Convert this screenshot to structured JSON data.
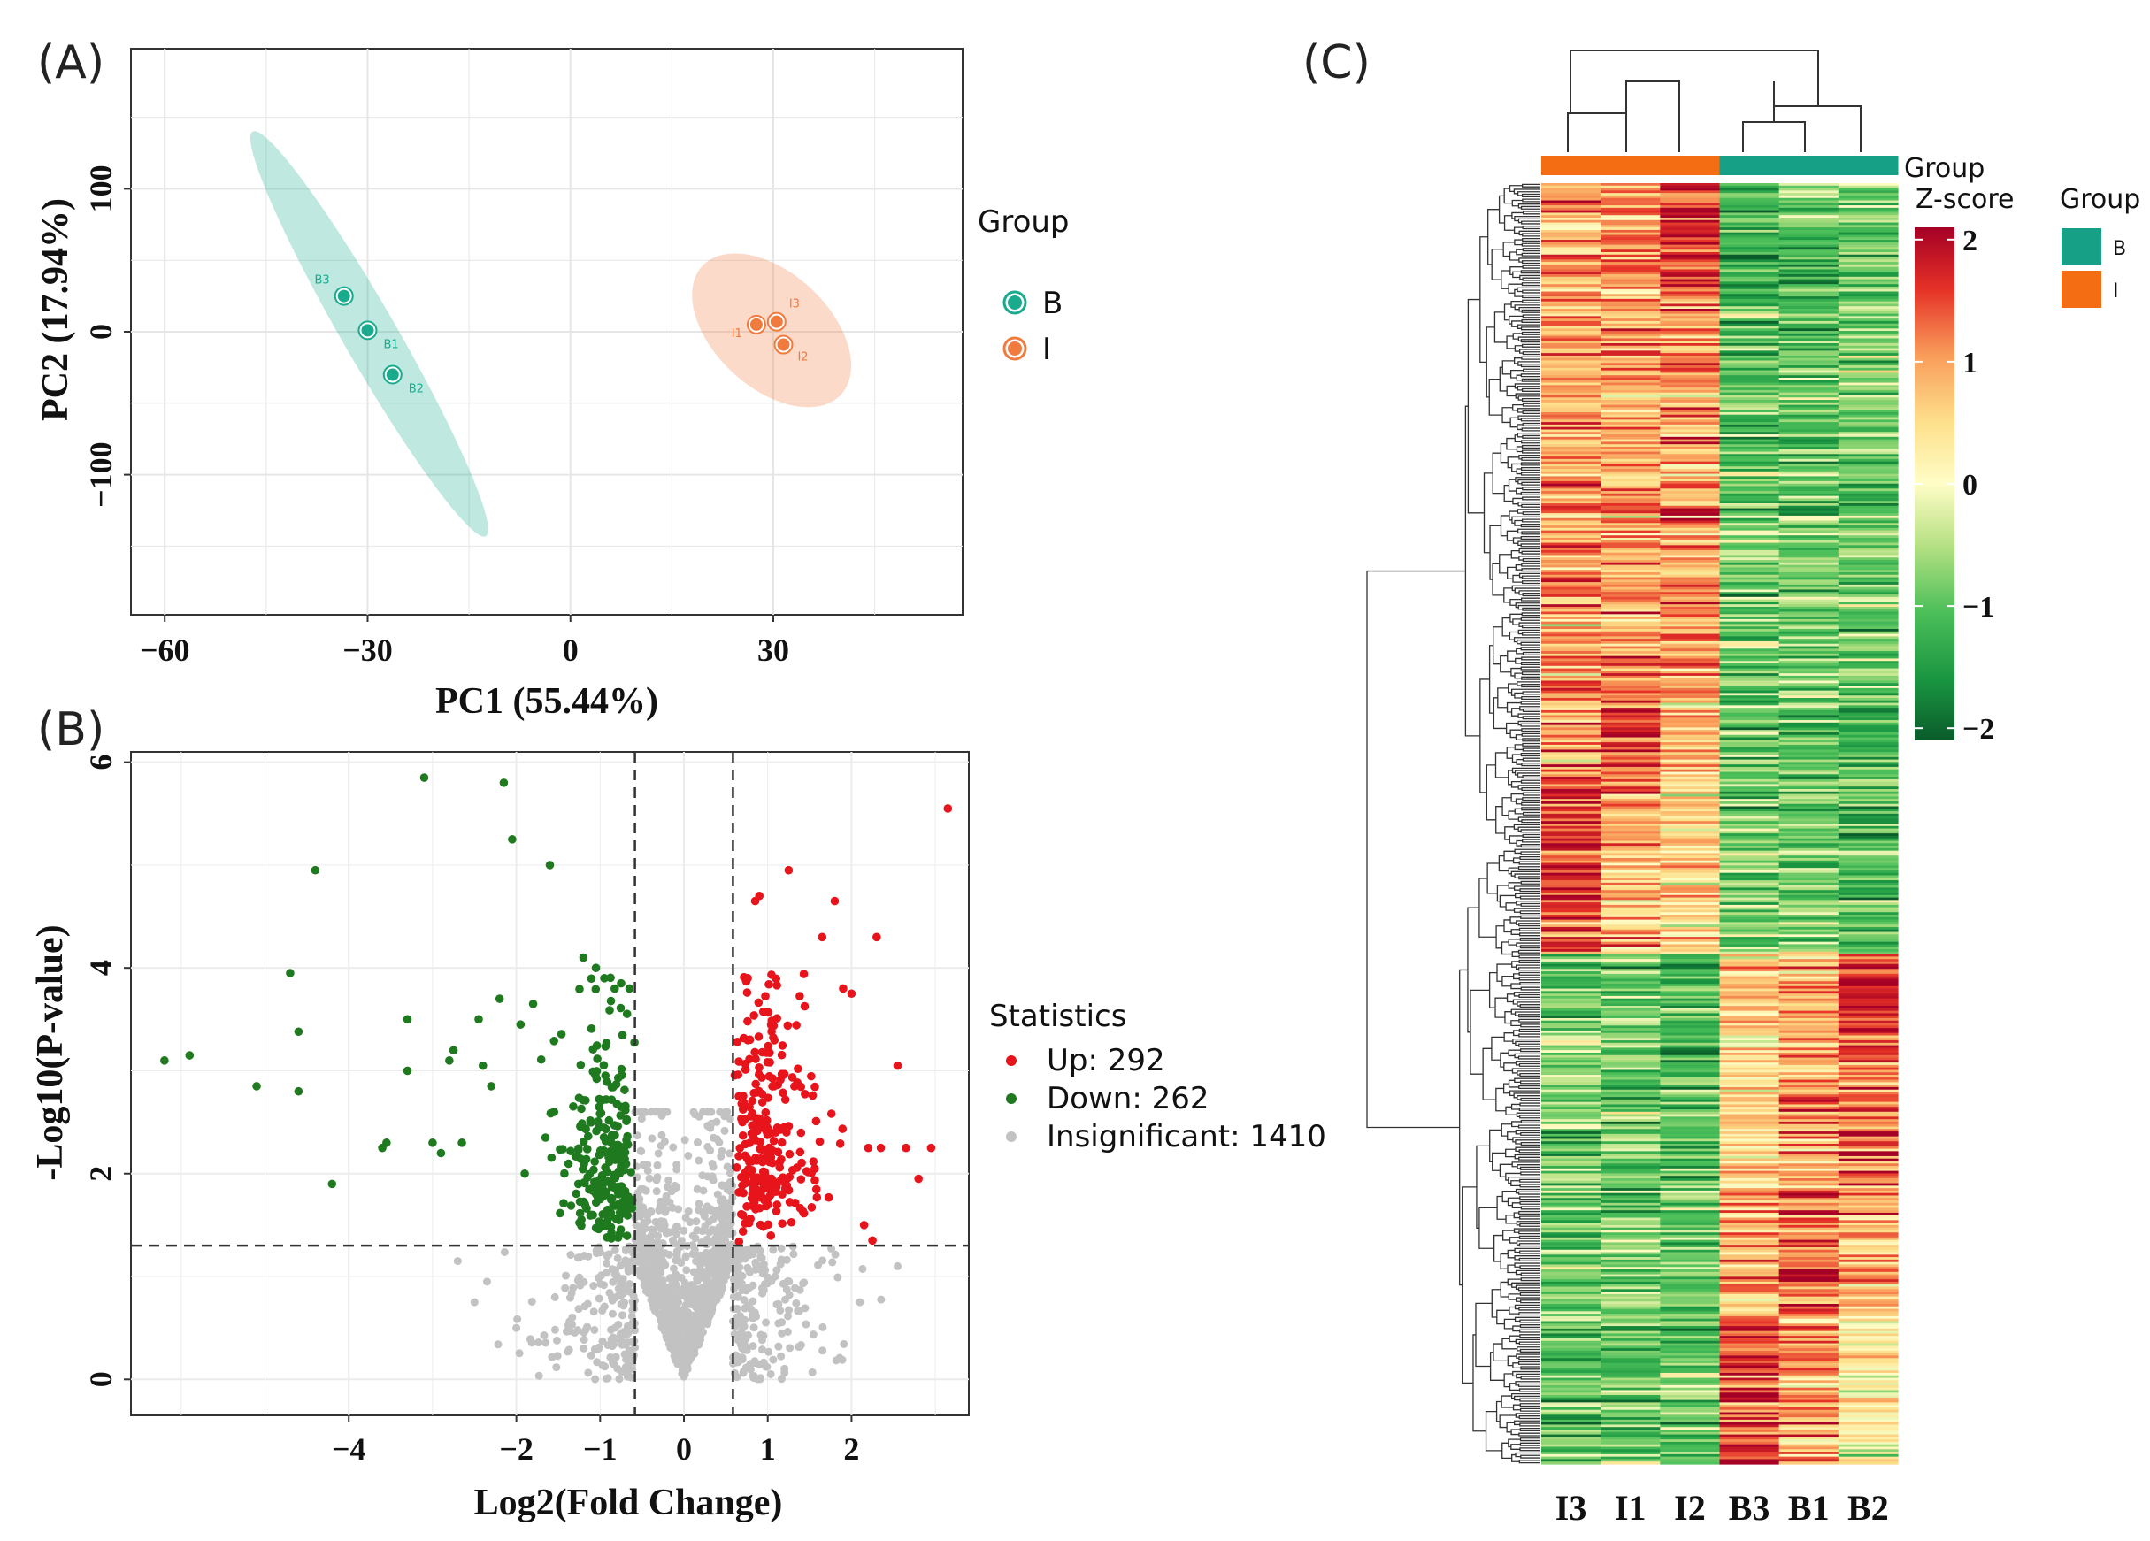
{
  "chart_data": [
    {
      "id": "A",
      "panel_label": "(A)",
      "type": "scatter",
      "title": "",
      "xlabel": "PC1 (55.44%)",
      "ylabel": "PC2 (17.94%)",
      "xlim": [
        -65,
        58
      ],
      "ylim": [
        -198,
        198
      ],
      "xticks": [
        -60,
        -30,
        0,
        30
      ],
      "yticks": [
        -100,
        0,
        100
      ],
      "xtick_labels": [
        "−60",
        "−30",
        "0",
        "30"
      ],
      "ytick_labels": [
        "−100",
        "0",
        "100"
      ],
      "grid": true,
      "legend_title": "Group",
      "series": [
        {
          "name": "B",
          "color": "#1aab8e",
          "points": [
            {
              "label": "B3",
              "x": -33.5,
              "y": 25
            },
            {
              "label": "B1",
              "x": -30.0,
              "y": 1
            },
            {
              "label": "B2",
              "x": -26.3,
              "y": -30
            }
          ],
          "ellipse": {
            "x1": -47,
            "y1": 140,
            "x2": -12.5,
            "y2": -143,
            "minor": 4
          }
        },
        {
          "name": "I",
          "color": "#f07b3f",
          "points": [
            {
              "label": "I1",
              "x": 27.5,
              "y": 5
            },
            {
              "label": "I3",
              "x": 30.5,
              "y": 7
            },
            {
              "label": "I2",
              "x": 31.5,
              "y": -9
            }
          ],
          "ellipse": {
            "x1": 19.5,
            "y1": 46,
            "x2": 40,
            "y2": -44,
            "minor": 8.5
          }
        }
      ]
    },
    {
      "id": "B",
      "panel_label": "(B)",
      "type": "scatter",
      "title": "",
      "xlabel": "Log2(Fold Change)",
      "ylabel": "-Log10(P-value)",
      "xlim": [
        -6.6,
        3.4
      ],
      "ylim": [
        -0.35,
        6.1
      ],
      "xticks": [
        -4,
        -2,
        -1,
        0,
        1,
        2
      ],
      "yticks": [
        0,
        2,
        4,
        6
      ],
      "xtick_labels": [
        "−4",
        "−2",
        "−1",
        "0",
        "1",
        "2"
      ],
      "ytick_labels": [
        "0",
        "2",
        "4",
        "6"
      ],
      "grid": true,
      "thresholds": {
        "fold_change": [
          -0.585,
          0.585
        ],
        "p_value_line": 1.3
      },
      "legend_title": "Statistics",
      "series": [
        {
          "name": "Up",
          "count": 292,
          "color": "#e8141b",
          "label": "Up: 292"
        },
        {
          "name": "Down",
          "count": 262,
          "color": "#1f7a1f",
          "label": "Down: 262"
        },
        {
          "name": "Insignificant",
          "count": 1410,
          "color": "#c2c2c2",
          "label": "Insignificant: 1410"
        }
      ],
      "highlight_points": {
        "down": [
          [
            -6.2,
            3.1
          ],
          [
            -5.9,
            3.15
          ],
          [
            -5.1,
            2.85
          ],
          [
            -4.7,
            3.95
          ],
          [
            -4.6,
            3.38
          ],
          [
            -4.6,
            2.8
          ],
          [
            -4.4,
            4.95
          ],
          [
            -4.2,
            1.9
          ],
          [
            -3.6,
            2.25
          ],
          [
            -3.55,
            2.3
          ],
          [
            -3.3,
            3.5
          ],
          [
            -3.3,
            3.0
          ],
          [
            -3.1,
            5.85
          ],
          [
            -3.0,
            2.3
          ],
          [
            -2.9,
            2.2
          ],
          [
            -2.8,
            3.1
          ],
          [
            -2.75,
            3.2
          ],
          [
            -2.65,
            2.3
          ],
          [
            -2.45,
            3.5
          ],
          [
            -2.4,
            3.05
          ],
          [
            -2.3,
            2.85
          ],
          [
            -2.2,
            3.7
          ],
          [
            -2.15,
            5.8
          ],
          [
            -2.05,
            5.25
          ],
          [
            -1.95,
            3.45
          ],
          [
            -1.9,
            2.0
          ],
          [
            -1.8,
            3.65
          ],
          [
            -1.6,
            5.0
          ],
          [
            -1.55,
            2.6
          ],
          [
            -1.2,
            4.1
          ],
          [
            -1.05,
            4.0
          ],
          [
            -0.95,
            3.9
          ],
          [
            -0.75,
            3.85
          ],
          [
            -0.65,
            3.8
          ]
        ],
        "up": [
          [
            3.15,
            5.55
          ],
          [
            1.25,
            4.95
          ],
          [
            0.85,
            4.65
          ],
          [
            0.9,
            4.7
          ],
          [
            1.8,
            4.65
          ],
          [
            2.3,
            4.3
          ],
          [
            1.65,
            4.3
          ],
          [
            1.9,
            3.8
          ],
          [
            2.0,
            3.75
          ],
          [
            2.55,
            3.05
          ],
          [
            2.2,
            2.25
          ],
          [
            2.35,
            2.25
          ],
          [
            2.95,
            2.25
          ],
          [
            2.65,
            2.25
          ],
          [
            2.8,
            1.95
          ],
          [
            2.15,
            1.5
          ],
          [
            2.25,
            1.35
          ]
        ]
      },
      "insignificant_extremes": [
        [
          -2.7,
          1.15
        ],
        [
          -2.5,
          0.75
        ],
        [
          -2.35,
          0.95
        ],
        [
          2.55,
          1.1
        ],
        [
          2.1,
          0.75
        ],
        [
          -2.0,
          0.5
        ]
      ]
    },
    {
      "id": "C",
      "panel_label": "(C)",
      "type": "heatmap",
      "title": "",
      "columns": [
        "I3",
        "I1",
        "I2",
        "B3",
        "B1",
        "B2"
      ],
      "column_groups": [
        "I",
        "I",
        "I",
        "B",
        "B",
        "B"
      ],
      "group_colors": {
        "I": "#f46d12",
        "B": "#16a085"
      },
      "group_bar_label": "Group",
      "colorbar_title": "Z-score",
      "colorbar_range": [
        -2.1,
        2.1
      ],
      "colorbar_ticks": [
        2,
        1,
        0,
        -1,
        -2
      ],
      "colorbar_tick_labels": [
        "2",
        "1",
        "0",
        "−1",
        "−2"
      ],
      "legend_title": "Group",
      "legend_items": [
        {
          "label": "B",
          "color": "#16a085"
        },
        {
          "label": "I",
          "color": "#f46d12"
        }
      ],
      "row_clusters": {
        "top_rows": 270,
        "bottom_rows": 250
      },
      "block_profiles": [
        {
          "rows": 0.03,
          "mean": [
            0.9,
            0.9,
            1.6,
            -0.9,
            -0.7,
            -0.5
          ]
        },
        {
          "rows": 0.05,
          "mean": [
            0.8,
            1.1,
            1.6,
            -1.2,
            -1.1,
            -0.8
          ]
        },
        {
          "rows": 0.14,
          "mean": [
            1.0,
            1.0,
            1.1,
            -1.1,
            -1.0,
            -0.8
          ]
        },
        {
          "rows": 0.18,
          "mean": [
            1.0,
            1.0,
            1.0,
            -0.9,
            -0.9,
            -0.9
          ]
        },
        {
          "rows": 0.055,
          "mean": [
            0.8,
            1.5,
            0.7,
            -0.9,
            -0.9,
            -1.0
          ]
        },
        {
          "rows": 0.145,
          "mean": [
            1.5,
            0.8,
            0.5,
            -0.8,
            -0.8,
            -1.0
          ]
        },
        {
          "rows": 0.05,
          "mean": [
            -0.9,
            -1.0,
            -1.1,
            0.6,
            0.9,
            1.8
          ]
        },
        {
          "rows": 0.13,
          "mean": [
            -0.8,
            -0.9,
            -1.2,
            0.6,
            1.0,
            1.3
          ]
        },
        {
          "rows": 0.1,
          "mean": [
            -0.9,
            -0.8,
            -0.9,
            0.8,
            1.3,
            0.8
          ]
        },
        {
          "rows": 0.12,
          "mean": [
            -1.0,
            -0.9,
            -0.9,
            1.5,
            0.9,
            0.3
          ]
        }
      ]
    }
  ]
}
